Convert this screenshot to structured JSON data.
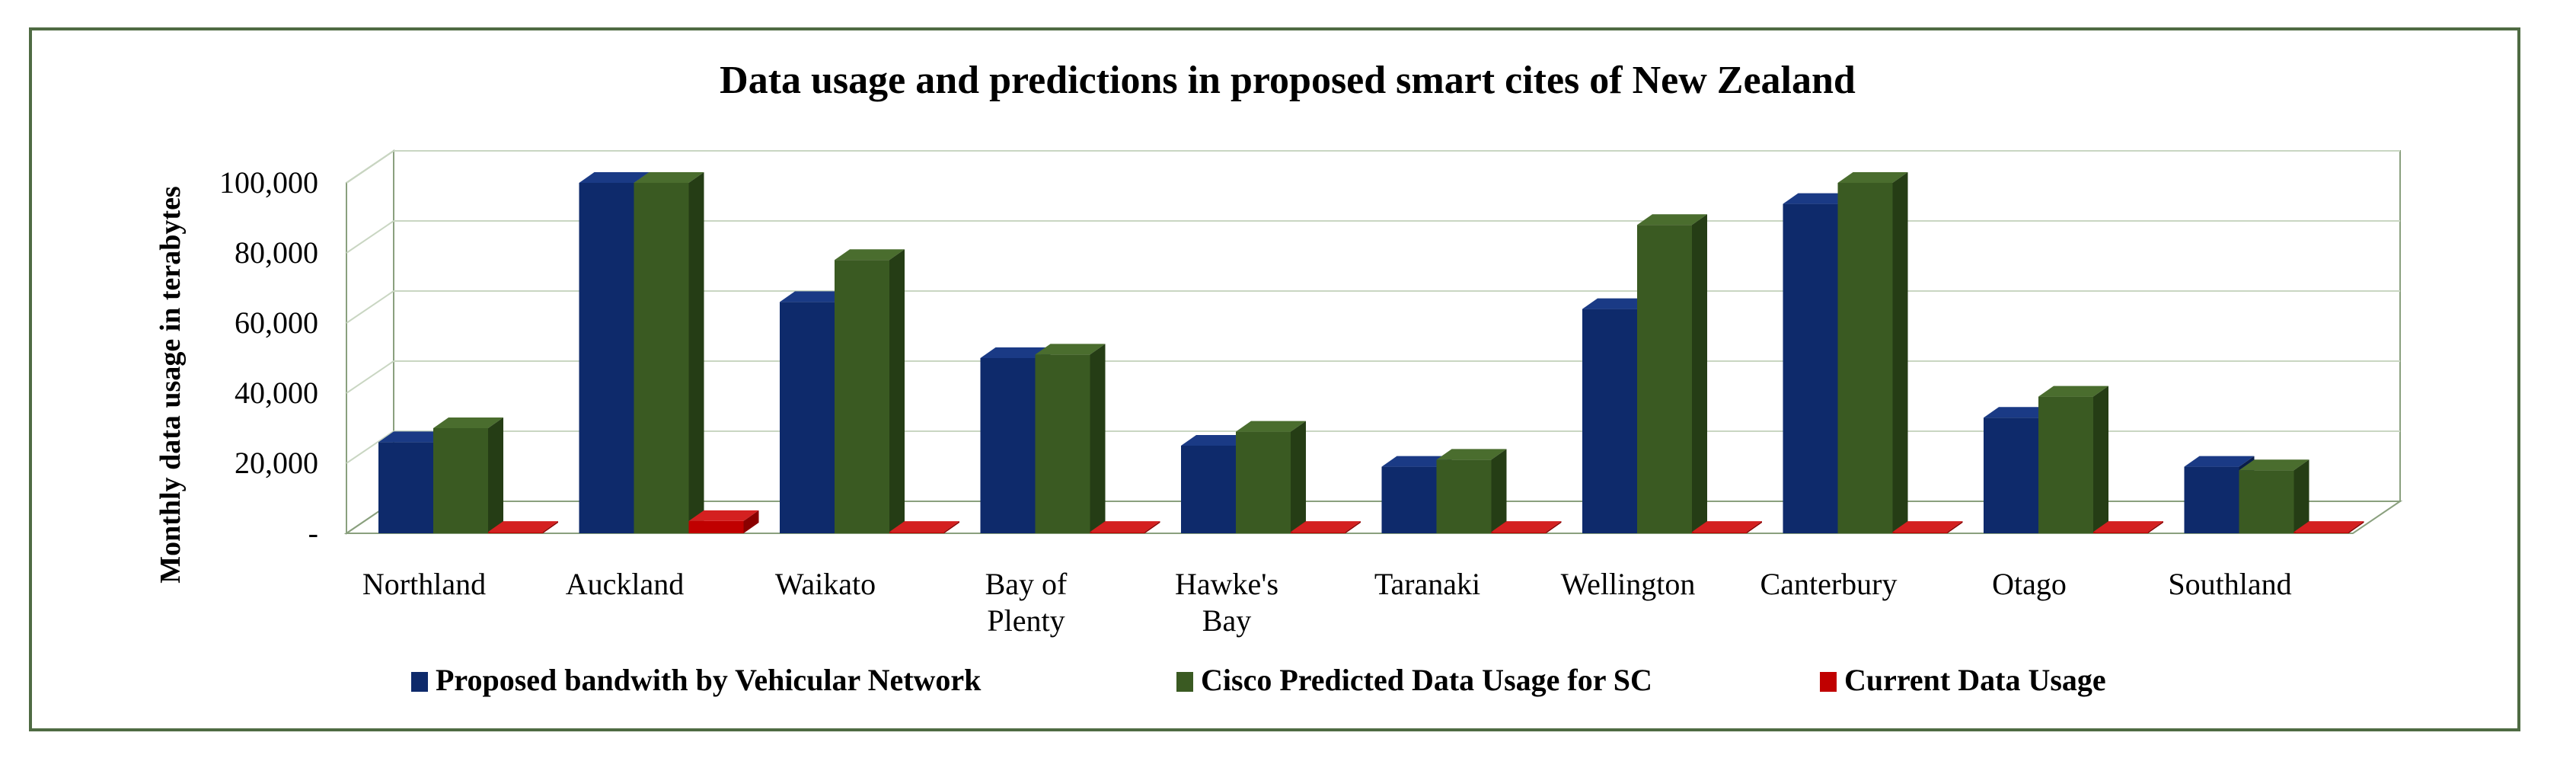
{
  "chart_data": {
    "type": "bar",
    "title": "Data usage and predictions  in proposed smart cites of New Zealand",
    "xlabel": "",
    "ylabel": "Monthly data usage in terabytes",
    "categories": [
      [
        "Northland"
      ],
      [
        "Auckland"
      ],
      [
        "Waikato"
      ],
      [
        "Bay of",
        "Plenty"
      ],
      [
        "Hawke's",
        "Bay"
      ],
      [
        "Taranaki"
      ],
      [
        "Wellington"
      ],
      [
        "Canterbury"
      ],
      [
        "Otago"
      ],
      [
        "Southland"
      ]
    ],
    "yticks": [
      {
        "value": 0,
        "label": "-"
      },
      {
        "value": 20000,
        "label": "20,000"
      },
      {
        "value": 40000,
        "label": "40,000"
      },
      {
        "value": 60000,
        "label": "60,000"
      },
      {
        "value": 80000,
        "label": "80,000"
      },
      {
        "value": 100000,
        "label": "100,000"
      }
    ],
    "ylim": [
      0,
      100000
    ],
    "grid": true,
    "legend_position": "bottom",
    "series": [
      {
        "name": "Proposed bandwith by Vehicular Network",
        "color": "#0e2a6b",
        "side": "#0a1d4a",
        "top": "#1a3a85",
        "values": [
          26000,
          100000,
          66000,
          50000,
          25000,
          19000,
          64000,
          94000,
          33000,
          19000
        ]
      },
      {
        "name": "Cisco Predicted Data Usage for SC",
        "color": "#3a5a22",
        "side": "#253d15",
        "top": "#4a6d2e",
        "values": [
          30000,
          100000,
          78000,
          51000,
          29000,
          21000,
          88000,
          100000,
          39000,
          18000
        ]
      },
      {
        "name": "Current Data Usage",
        "color": "#c00000",
        "side": "#8a0000",
        "top": "#d42020",
        "values": [
          400,
          3500,
          400,
          400,
          400,
          400,
          400,
          400,
          400,
          400
        ]
      }
    ]
  }
}
